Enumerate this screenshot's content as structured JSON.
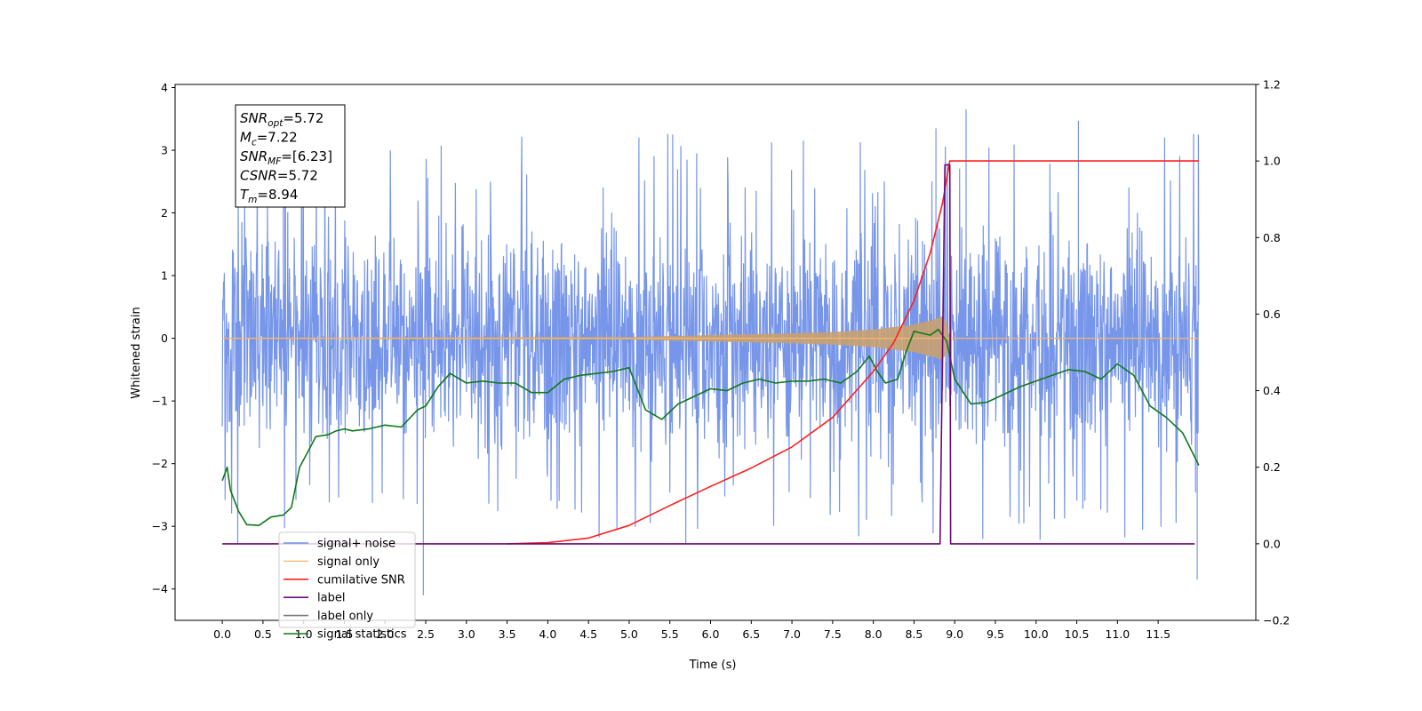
{
  "chart_data": {
    "type": "line",
    "xlabel": "Time (s)",
    "ylabel": "Whitened strain",
    "xlim": [
      -0.58,
      12.7
    ],
    "ylim": [
      -4.5,
      4.05
    ],
    "y2lim": [
      -0.2,
      1.2
    ],
    "x_ticks": [
      "0.0",
      "0.5",
      "1.0",
      "1.5",
      "2.0",
      "2.5",
      "3.0",
      "3.5",
      "4.0",
      "4.5",
      "5.0",
      "5.5",
      "6.0",
      "6.5",
      "7.0",
      "7.5",
      "8.0",
      "8.5",
      "9.0",
      "9.5",
      "10.0",
      "10.5",
      "11.0",
      "11.5"
    ],
    "y_ticks": [
      "4",
      "3",
      "2",
      "1",
      "0",
      "−1",
      "−2",
      "−3",
      "−4"
    ],
    "y2_ticks": [
      "1.2",
      "1.0",
      "0.8",
      "0.6",
      "0.4",
      "0.2",
      "0.0",
      "−0.2"
    ],
    "annotation_box": [
      {
        "base": "SNR",
        "sub": "opt",
        "value": "=5.72"
      },
      {
        "base": "M",
        "sub": "c",
        "value": "=7.22"
      },
      {
        "base": "SNR",
        "sub": "MF",
        "value": "=[6.23]"
      },
      {
        "base": "CSNR",
        "sub": "",
        "value": "=5.72"
      },
      {
        "base": "T",
        "sub": "m",
        "value": "=8.94"
      }
    ],
    "legend_position": "lower-left",
    "series": [
      {
        "name": "signal+ noise",
        "axis": "left",
        "color": "#7090e8",
        "description_range": [
          -3.6,
          3.6
        ],
        "x_range": [
          0,
          12
        ],
        "noise_envelope": 1.35,
        "notable_peaks": [
          {
            "x": 2.47,
            "y": -4.1
          },
          {
            "x": 9.14,
            "y": 3.65
          },
          {
            "x": 11.98,
            "y": -3.85
          },
          {
            "x": 0.75,
            "y": 3.1
          },
          {
            "x": 10.52,
            "y": 3.47
          },
          {
            "x": 8.77,
            "y": 3.35
          }
        ]
      },
      {
        "name": "signal only",
        "axis": "left",
        "color": "#f6b86c",
        "x_range": [
          0,
          12
        ],
        "envelope_points": [
          [
            0,
            0.01
          ],
          [
            5.0,
            0.02
          ],
          [
            6.0,
            0.05
          ],
          [
            7.0,
            0.08
          ],
          [
            7.5,
            0.1
          ],
          [
            8.0,
            0.14
          ],
          [
            8.5,
            0.22
          ],
          [
            8.75,
            0.3
          ],
          [
            8.84,
            0.35
          ],
          [
            8.9,
            0.25
          ],
          [
            8.94,
            0.0
          ],
          [
            12,
            0.0
          ]
        ]
      },
      {
        "name": "cumilative SNR",
        "axis": "right",
        "color": "#ff1f1f",
        "x": [
          3.5,
          4.0,
          4.5,
          5.0,
          5.5,
          6.0,
          6.5,
          7.0,
          7.5,
          8.0,
          8.25,
          8.5,
          8.7,
          8.85,
          8.94,
          12.0
        ],
        "values": [
          0.0,
          0.003,
          0.015,
          0.048,
          0.1,
          0.15,
          0.198,
          0.253,
          0.33,
          0.45,
          0.525,
          0.635,
          0.76,
          0.89,
          1.0,
          1.0
        ]
      },
      {
        "name": "label",
        "axis": "right",
        "color": "#6a0a72",
        "x": [
          0.0,
          8.82,
          8.88,
          8.94,
          8.95,
          11.95
        ],
        "values": [
          0.0,
          0.0,
          0.99,
          0.99,
          0.0,
          0.0
        ]
      },
      {
        "name": "label only",
        "axis": "right",
        "color": "#7b7b7b",
        "x": [],
        "values": []
      },
      {
        "name": "signal statistics",
        "axis": "right",
        "color": "#12781a",
        "x": [
          0.0,
          0.06,
          0.1,
          0.2,
          0.3,
          0.45,
          0.6,
          0.75,
          0.85,
          0.95,
          1.05,
          1.15,
          1.3,
          1.4,
          1.5,
          1.6,
          1.8,
          2.0,
          2.2,
          2.4,
          2.5,
          2.65,
          2.8,
          3.0,
          3.2,
          3.4,
          3.6,
          3.8,
          4.0,
          4.2,
          4.4,
          4.6,
          4.8,
          5.0,
          5.2,
          5.4,
          5.6,
          5.8,
          6.0,
          6.2,
          6.4,
          6.6,
          6.8,
          7.0,
          7.2,
          7.4,
          7.6,
          7.8,
          7.95,
          8.05,
          8.15,
          8.3,
          8.4,
          8.5,
          8.6,
          8.7,
          8.8,
          8.9,
          9.0,
          9.2,
          9.4,
          9.6,
          9.8,
          10.0,
          10.2,
          10.4,
          10.6,
          10.8,
          11.0,
          11.2,
          11.4,
          11.6,
          11.8,
          12.0
        ],
        "values": [
          0.165,
          0.2,
          0.14,
          0.085,
          0.05,
          0.048,
          0.07,
          0.075,
          0.095,
          0.2,
          0.24,
          0.28,
          0.285,
          0.295,
          0.3,
          0.295,
          0.3,
          0.31,
          0.305,
          0.35,
          0.36,
          0.41,
          0.445,
          0.42,
          0.425,
          0.42,
          0.42,
          0.395,
          0.395,
          0.43,
          0.44,
          0.445,
          0.45,
          0.46,
          0.35,
          0.325,
          0.365,
          0.385,
          0.405,
          0.4,
          0.42,
          0.43,
          0.42,
          0.425,
          0.425,
          0.43,
          0.42,
          0.45,
          0.49,
          0.45,
          0.42,
          0.43,
          0.5,
          0.555,
          0.55,
          0.545,
          0.56,
          0.53,
          0.43,
          0.365,
          0.37,
          0.39,
          0.41,
          0.425,
          0.44,
          0.455,
          0.45,
          0.43,
          0.47,
          0.44,
          0.36,
          0.33,
          0.29,
          0.205
        ]
      }
    ]
  }
}
